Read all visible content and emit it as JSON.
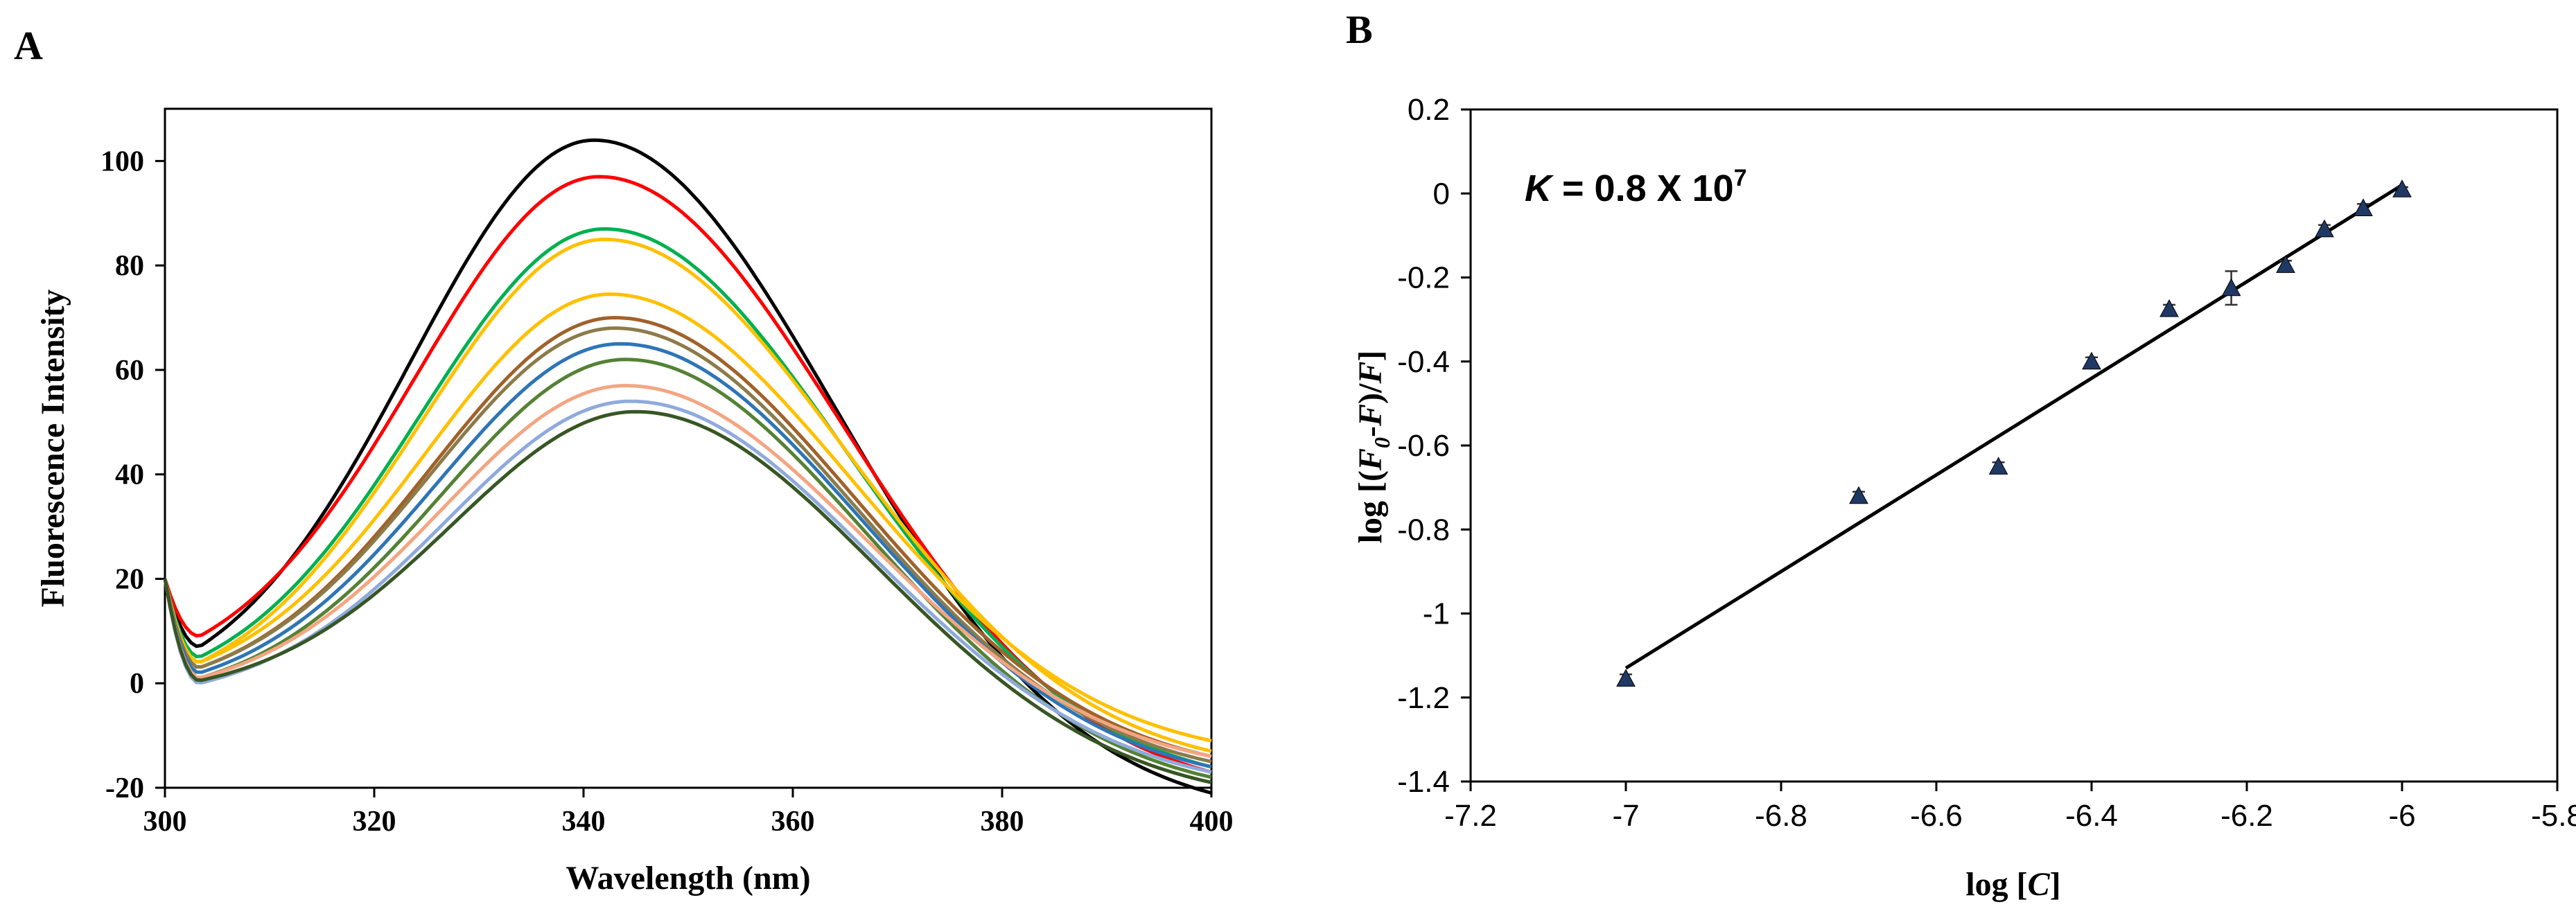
{
  "chart_data": [
    {
      "panel_label": "A",
      "type": "line",
      "title": "",
      "xlabel": "Wavelength (nm)",
      "ylabel": "Fluorescence Intensity",
      "xlim": [
        300,
        400
      ],
      "ylim": [
        -20,
        110
      ],
      "xticks": [
        "300",
        "320",
        "340",
        "360",
        "380",
        "400"
      ],
      "yticks": [
        "-20",
        "0",
        "20",
        "40",
        "60",
        "80",
        "100"
      ],
      "grid": false,
      "legend": "none",
      "series": [
        {
          "name": "s1",
          "color": "#000000",
          "peak_x": 341,
          "peak_y": 104,
          "min_y": 7,
          "end_y": -21
        },
        {
          "name": "s2",
          "color": "#ff0000",
          "peak_x": 341.5,
          "peak_y": 97,
          "min_y": 9,
          "end_y": -17
        },
        {
          "name": "s3",
          "color": "#00b050",
          "peak_x": 342,
          "peak_y": 87,
          "min_y": 5,
          "end_y": -16
        },
        {
          "name": "s4",
          "color": "#ffc000",
          "peak_x": 342,
          "peak_y": 85,
          "min_y": 4,
          "end_y": -13
        },
        {
          "name": "s5",
          "color": "#ffc000",
          "peak_x": 342.5,
          "peak_y": 74.5,
          "min_y": 4,
          "end_y": -11
        },
        {
          "name": "s6",
          "color": "#a0622a",
          "peak_x": 343,
          "peak_y": 70,
          "min_y": 3,
          "end_y": -14
        },
        {
          "name": "s7",
          "color": "#8c7b4a",
          "peak_x": 343,
          "peak_y": 68,
          "min_y": 3,
          "end_y": -15
        },
        {
          "name": "s8",
          "color": "#2e75b6",
          "peak_x": 343.5,
          "peak_y": 65,
          "min_y": 2,
          "end_y": -16
        },
        {
          "name": "s9",
          "color": "#548235",
          "peak_x": 344,
          "peak_y": 62,
          "min_y": 1,
          "end_y": -18
        },
        {
          "name": "s10",
          "color": "#f4a582",
          "peak_x": 344,
          "peak_y": 57,
          "min_y": 1,
          "end_y": -14
        },
        {
          "name": "s11",
          "color": "#8faadc",
          "peak_x": 344.5,
          "peak_y": 54,
          "min_y": 0,
          "end_y": -17
        },
        {
          "name": "s12",
          "color": "#375623",
          "peak_x": 345,
          "peak_y": 52,
          "min_y": 0.5,
          "end_y": -19
        }
      ]
    },
    {
      "panel_label": "B",
      "type": "scatter",
      "title": "",
      "annotation": {
        "var": "K",
        "text": " = 0.8 X 10",
        "sup": "7"
      },
      "xlabel": {
        "prefix": "log [",
        "var": "C",
        "suffix": "]"
      },
      "ylabel": {
        "prefix": "log [(",
        "var1": "F",
        "sub": "0",
        "mid": "-",
        "var2": "F",
        "mid2": ")/",
        "var3": "F",
        "suffix": "]"
      },
      "xlim": [
        -7.2,
        -5.8
      ],
      "ylim": [
        -1.4,
        0.2
      ],
      "xticks": [
        "-7.2",
        "-7",
        "-6.8",
        "-6.6",
        "-6.4",
        "-6.2",
        "-6",
        "-5.8"
      ],
      "yticks": [
        "-1.4",
        "-1.2",
        "-1",
        "-0.8",
        "-0.6",
        "-0.4",
        "-0.2",
        "0",
        "0.2"
      ],
      "grid": false,
      "legend": "none",
      "marker_color": "#1f3864",
      "points": [
        {
          "x": -7.0,
          "y": -1.155,
          "err": 0.01
        },
        {
          "x": -6.7,
          "y": -0.72,
          "err": 0.01
        },
        {
          "x": -6.52,
          "y": -0.65,
          "err": 0.01
        },
        {
          "x": -6.4,
          "y": -0.4,
          "err": 0.01
        },
        {
          "x": -6.3,
          "y": -0.275,
          "err": 0.01
        },
        {
          "x": -6.22,
          "y": -0.225,
          "err": 0.04
        },
        {
          "x": -6.15,
          "y": -0.17,
          "err": 0.01
        },
        {
          "x": -6.1,
          "y": -0.085,
          "err": 0.01
        },
        {
          "x": -6.05,
          "y": -0.035,
          "err": 0.01
        },
        {
          "x": -6.0,
          "y": 0.01,
          "err": 0.005
        }
      ],
      "fit_line": {
        "x": [
          -7.0,
          -6.0
        ],
        "y": [
          -1.13,
          0.02
        ]
      }
    }
  ]
}
